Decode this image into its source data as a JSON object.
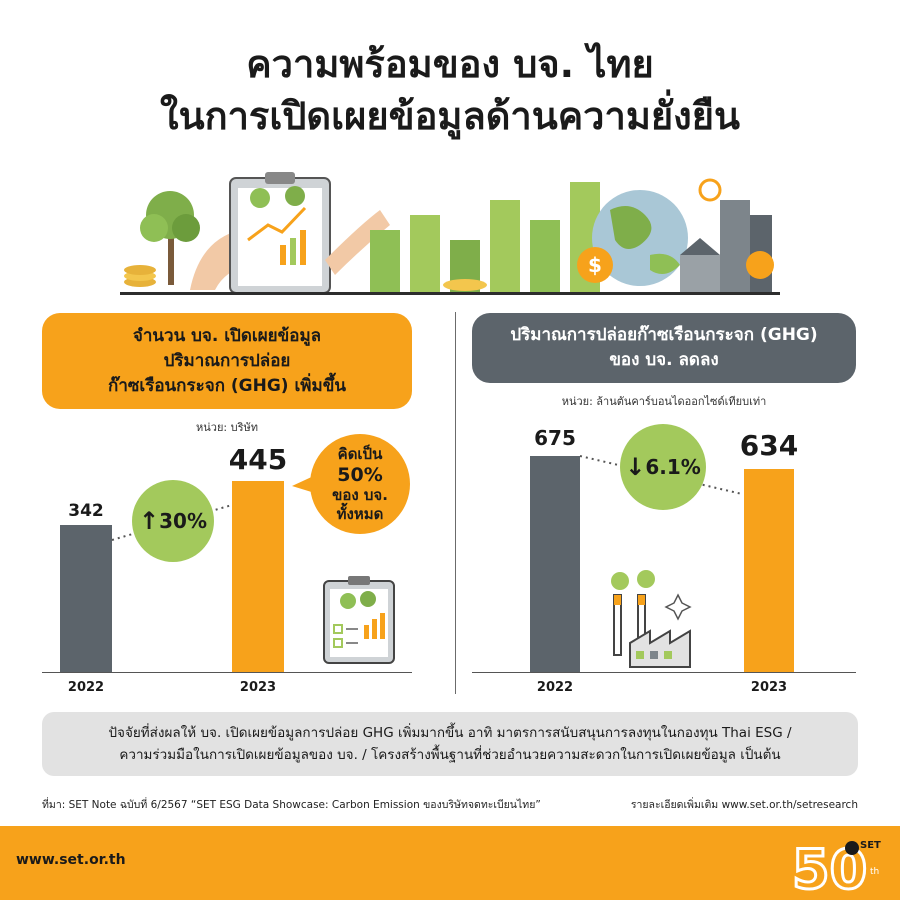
{
  "title": {
    "line1": "ความพร้อมของ บจ. ไทย",
    "line2": "ในการเปิดเผยข้อมูลด้านความยั่งยืน"
  },
  "left_panel": {
    "heading_lines": [
      "จำนวน บจ. เปิดเผยข้อมูล",
      "ปริมาณการปล่อย",
      "ก๊าซเรือนกระจก (GHG) เพิ่มขึ้น"
    ],
    "unit": "หน่วย: บริษัท",
    "change_label": "30%",
    "share": {
      "line1": "คิดเป็น",
      "pct": "50%",
      "line2": "ของ บจ.",
      "line3": "ทั้งหมด"
    }
  },
  "right_panel": {
    "heading_lines": [
      "ปริมาณการปล่อยก๊าซเรือนกระจก (GHG)",
      "ของ บจ. ลดลง"
    ],
    "unit": "หน่วย: ล้านตันคาร์บอนไดออกไซด์เทียบเท่า",
    "change_label": "6.1%"
  },
  "chart_data": [
    {
      "type": "bar",
      "title": "จำนวน บจ. เปิดเผยข้อมูลปริมาณการปล่อยก๊าซเรือนกระจก (GHG) เพิ่มขึ้น",
      "categories": [
        "2022",
        "2023"
      ],
      "values": [
        342,
        445
      ],
      "value_labels": [
        "342",
        "445"
      ],
      "ylabel": "บริษัท",
      "ylim": [
        0,
        560
      ],
      "colors": [
        "#5c646b",
        "#f7a21b"
      ],
      "annotation": "↑30%"
    },
    {
      "type": "bar",
      "title": "ปริมาณการปล่อยก๊าซเรือนกระจก (GHG) ของ บจ. ลดลง",
      "categories": [
        "2022",
        "2023"
      ],
      "values": [
        675,
        634
      ],
      "value_labels": [
        "675",
        "634"
      ],
      "ylabel": "ล้านตันคาร์บอนไดออกไซด์เทียบเท่า",
      "ylim": [
        0,
        1000
      ],
      "colors": [
        "#5c646b",
        "#f7a21b"
      ],
      "annotation": "↓6.1%"
    }
  ],
  "footnote": {
    "line1": "ปัจจัยที่ส่งผลให้ บจ. เปิดเผยข้อมูลการปล่อย GHG เพิ่มมากขึ้น อาทิ มาตรการสนับสนุนการลงทุนในกองทุน Thai ESG /",
    "line2": "ความร่วมมือในการเปิดเผยข้อมูลของ บจ. / โครงสร้างพื้นฐานที่ช่วยอำนวยความสะดวกในการเปิดเผยข้อมูล เป็นต้น"
  },
  "source": "ที่มา: SET Note ฉบับที่ 6/2567 “SET ESG Data Showcase: Carbon Emission ของบริษัทจดทะเบียนไทย”",
  "more_info": "รายละเอียดเพิ่มเติม www.set.or.th/setresearch",
  "footer": {
    "site": "www.set.or.th",
    "logo_text": "SET",
    "logo_number": "50",
    "logo_suffix": "th"
  },
  "colors": {
    "orange": "#f7a21b",
    "gray": "#5c646b",
    "green": "#a3c95c",
    "light_gray": "#e2e2e2"
  }
}
